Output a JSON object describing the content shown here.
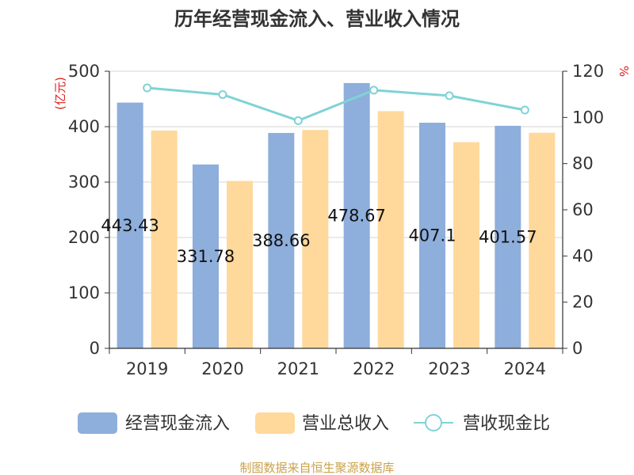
{
  "chart_data": {
    "type": "bar",
    "title": "历年经营现金流入、营业收入情况",
    "categories": [
      "2019",
      "2020",
      "2021",
      "2022",
      "2023",
      "2024"
    ],
    "series": [
      {
        "name": "经营现金流入",
        "kind": "bar",
        "axis": "left",
        "color": "#8eaedb",
        "values": [
          443.43,
          331.78,
          388.66,
          478.67,
          407.1,
          401.57
        ],
        "labels": [
          "443.43",
          "331.78",
          "388.66",
          "478.67",
          "407.1",
          "401.57"
        ]
      },
      {
        "name": "营业总收入",
        "kind": "bar",
        "axis": "left",
        "color": "#ffd89b",
        "values": [
          393,
          302,
          394,
          428,
          372,
          389
        ]
      },
      {
        "name": "营收现金比",
        "kind": "line",
        "axis": "right",
        "color": "#7fd3d5",
        "values": [
          112.8,
          109.9,
          98.6,
          111.8,
          109.4,
          103.2
        ]
      }
    ],
    "yleft": {
      "label": "(亿元)",
      "ylim": [
        0,
        500
      ],
      "ticks": [
        "0",
        "100",
        "200",
        "300",
        "400",
        "500"
      ]
    },
    "yright": {
      "label": "%",
      "ylim": [
        0,
        120
      ],
      "ticks": [
        "0",
        "20",
        "40",
        "60",
        "80",
        "100",
        "120"
      ]
    },
    "grid": true,
    "legend": "bottom"
  },
  "source_text": "制图数据来自恒生聚源数据库"
}
